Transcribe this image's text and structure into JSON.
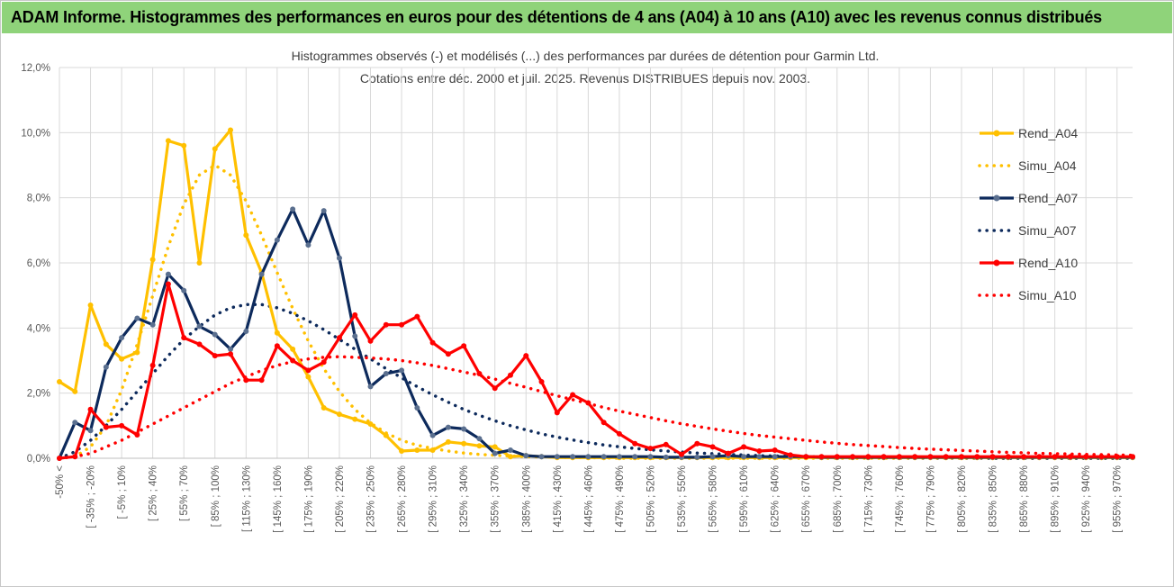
{
  "banner": {
    "text": "ADAM Informe. Histogrammes des performances en euros pour des détentions de 4 ans (A04) à 10 ans (A10) avec les revenus connus distribués"
  },
  "colors": {
    "banner_bg": "#8fd37a",
    "A04": "#ffc000",
    "A07": "#0d2a5c",
    "A10": "#ff0000",
    "grid": "#d9d9d9"
  },
  "chart_data": {
    "type": "line",
    "title": "Histogrammes observés (-) et modélisés (...) des performances par durées de détention pour Garmin Ltd.",
    "subtitle": "Cotations entre déc. 2000 et juil. 2025. Revenus DISTRIBUES depuis nov. 2003.",
    "ylim": [
      0,
      12
    ],
    "yticks": [
      "0,0%",
      "2,0%",
      "4,0%",
      "6,0%",
      "8,0%",
      "10,0%",
      "12,0%"
    ],
    "grid": true,
    "legend_position": "right",
    "x_labels": [
      "-50% <",
      "[ -35% ; -20%",
      "[ -5% ; 10%",
      "[ 25% ; 40%",
      "[ 55% ; 70%",
      "[ 85% ; 100%",
      "[ 115% ; 130%",
      "[ 145% ; 160%",
      "[ 175% ; 190%",
      "[ 205% ; 220%",
      "[ 235% ; 250%",
      "[ 265% ; 280%",
      "[ 295% ; 310%",
      "[ 325% ; 340%",
      "[ 355% ; 370%",
      "[ 385% ; 400%",
      "[ 415% ; 430%",
      "[ 445% ; 460%",
      "[ 475% ; 490%",
      "[ 505% ; 520%",
      "[ 535% ; 550%",
      "[ 565% ; 580%",
      "[ 595% ; 610%",
      "[ 625% ; 640%",
      "[ 655% ; 670%",
      "[ 685% ; 700%",
      "[ 715% ; 730%",
      "[ 745% ; 760%",
      "[ 775% ; 790%",
      "[ 805% ; 820%",
      "[ 835% ; 850%",
      "[ 865% ; 880%",
      "[ 895% ; 910%",
      "[ 925% ; 940%",
      "[ 955% ; 970%"
    ],
    "series": [
      {
        "name": "Rend_A04",
        "style": "solid",
        "color": "#ffc000",
        "values": [
          2.35,
          2.05,
          4.7,
          3.5,
          3.05,
          3.25,
          6.1,
          9.75,
          9.6,
          6.0,
          9.5,
          10.08,
          6.85,
          5.7,
          3.85,
          3.35,
          2.5,
          1.55,
          1.35,
          1.2,
          1.05,
          0.7,
          0.22,
          0.25,
          0.25,
          0.5,
          0.45,
          0.38,
          0.35,
          0.05,
          0.08,
          0.05,
          0.02,
          0.02,
          0.02,
          0.02,
          0.02,
          0.02,
          0.02,
          0.02,
          0.02,
          0.02,
          0.02,
          0.02,
          0.02,
          0.02,
          0.02,
          0.02,
          0.02,
          0.02,
          0.02,
          0.02,
          0.02,
          0.02,
          0.02,
          0.02,
          0.02,
          0.02,
          0.02,
          0.02,
          0.02,
          0.02,
          0.02,
          0.02,
          0.02,
          0.02,
          0.02,
          0.02,
          0.02,
          0.02
        ]
      },
      {
        "name": "Simu_A04",
        "style": "dotted",
        "color": "#ffc000",
        "values": [
          0,
          0.05,
          0.35,
          1.0,
          2.1,
          3.5,
          5.0,
          6.5,
          7.8,
          8.7,
          9.0,
          8.7,
          7.9,
          6.85,
          5.7,
          4.6,
          3.6,
          2.75,
          2.05,
          1.5,
          1.08,
          0.78,
          0.55,
          0.4,
          0.3,
          0.22,
          0.16,
          0.12,
          0.09,
          0.07,
          0.05,
          0.04,
          0.03,
          0.02,
          0.02,
          0.01,
          0,
          0,
          0,
          0,
          0,
          0,
          0,
          0,
          0,
          0,
          0,
          0,
          0,
          0,
          0,
          0,
          0,
          0,
          0,
          0,
          0,
          0,
          0,
          0,
          0,
          0,
          0,
          0,
          0,
          0,
          0,
          0,
          0,
          0
        ]
      },
      {
        "name": "Rend_A07",
        "style": "solid",
        "color": "#0d2a5c",
        "values": [
          0,
          1.1,
          0.85,
          2.8,
          3.7,
          4.3,
          4.1,
          5.65,
          5.15,
          4.05,
          3.8,
          3.35,
          3.9,
          5.65,
          6.7,
          7.65,
          6.55,
          7.6,
          6.15,
          3.75,
          2.2,
          2.6,
          2.7,
          1.55,
          0.7,
          0.95,
          0.9,
          0.6,
          0.15,
          0.25,
          0.08,
          0.05,
          0.05,
          0.05,
          0.05,
          0.05,
          0.05,
          0.05,
          0.05,
          0.03,
          0.03,
          0.03,
          0.05,
          0.08,
          0.05,
          0.05,
          0.05,
          0.05,
          0.05,
          0.03,
          0.03,
          0.03,
          0.03,
          0.03,
          0.03,
          0.03,
          0.03,
          0.03,
          0.03,
          0.03,
          0.03,
          0.03,
          0.03,
          0.03,
          0.03,
          0.03,
          0.03,
          0.03,
          0.03,
          0.03
        ]
      },
      {
        "name": "Simu_A07",
        "style": "dotted",
        "color": "#0d2a5c",
        "values": [
          0,
          0.2,
          0.55,
          1.0,
          1.5,
          2.05,
          2.6,
          3.15,
          3.65,
          4.05,
          4.4,
          4.62,
          4.72,
          4.72,
          4.62,
          4.45,
          4.22,
          3.95,
          3.65,
          3.35,
          3.05,
          2.75,
          2.47,
          2.2,
          1.95,
          1.72,
          1.5,
          1.32,
          1.15,
          1.0,
          0.87,
          0.75,
          0.65,
          0.56,
          0.48,
          0.41,
          0.35,
          0.3,
          0.26,
          0.22,
          0.19,
          0.16,
          0.14,
          0.12,
          0.1,
          0.08,
          0.07,
          0.06,
          0.05,
          0.04,
          0.03,
          0.03,
          0.02,
          0.02,
          0.02,
          0.01,
          0.01,
          0.01,
          0.01,
          0.01,
          0,
          0,
          0,
          0,
          0,
          0,
          0,
          0,
          0,
          0
        ]
      },
      {
        "name": "Rend_A10",
        "style": "solid",
        "color": "#ff0000",
        "values": [
          0,
          0.05,
          1.5,
          0.95,
          1.0,
          0.72,
          2.85,
          5.35,
          3.7,
          3.5,
          3.15,
          3.2,
          2.4,
          2.4,
          3.45,
          3.0,
          2.7,
          2.95,
          3.7,
          4.4,
          3.6,
          4.1,
          4.1,
          4.35,
          3.55,
          3.2,
          3.45,
          2.6,
          2.15,
          2.55,
          3.15,
          2.35,
          1.4,
          1.95,
          1.7,
          1.1,
          0.75,
          0.45,
          0.3,
          0.42,
          0.12,
          0.45,
          0.35,
          0.15,
          0.35,
          0.22,
          0.25,
          0.1,
          0.05,
          0.05,
          0.05,
          0.05,
          0.05,
          0.05,
          0.05,
          0.05,
          0.05,
          0.05,
          0.05,
          0.05,
          0.05,
          0.05,
          0.05,
          0.05,
          0.05,
          0.05,
          0.05,
          0.05,
          0.05,
          0.05
        ]
      },
      {
        "name": "Simu_A10",
        "style": "dotted",
        "color": "#ff0000",
        "values": [
          0,
          0.05,
          0.15,
          0.35,
          0.55,
          0.8,
          1.05,
          1.3,
          1.55,
          1.8,
          2.05,
          2.3,
          2.5,
          2.7,
          2.85,
          2.97,
          3.05,
          3.1,
          3.12,
          3.1,
          3.08,
          3.05,
          3.0,
          2.93,
          2.85,
          2.75,
          2.65,
          2.55,
          2.43,
          2.3,
          2.18,
          2.05,
          1.92,
          1.8,
          1.68,
          1.56,
          1.45,
          1.35,
          1.25,
          1.15,
          1.06,
          0.98,
          0.9,
          0.83,
          0.76,
          0.7,
          0.65,
          0.6,
          0.55,
          0.5,
          0.46,
          0.42,
          0.39,
          0.36,
          0.33,
          0.3,
          0.28,
          0.26,
          0.24,
          0.22,
          0.2,
          0.18,
          0.17,
          0.15,
          0.14,
          0.13,
          0.12,
          0.11,
          0.1,
          0.09
        ]
      }
    ]
  }
}
